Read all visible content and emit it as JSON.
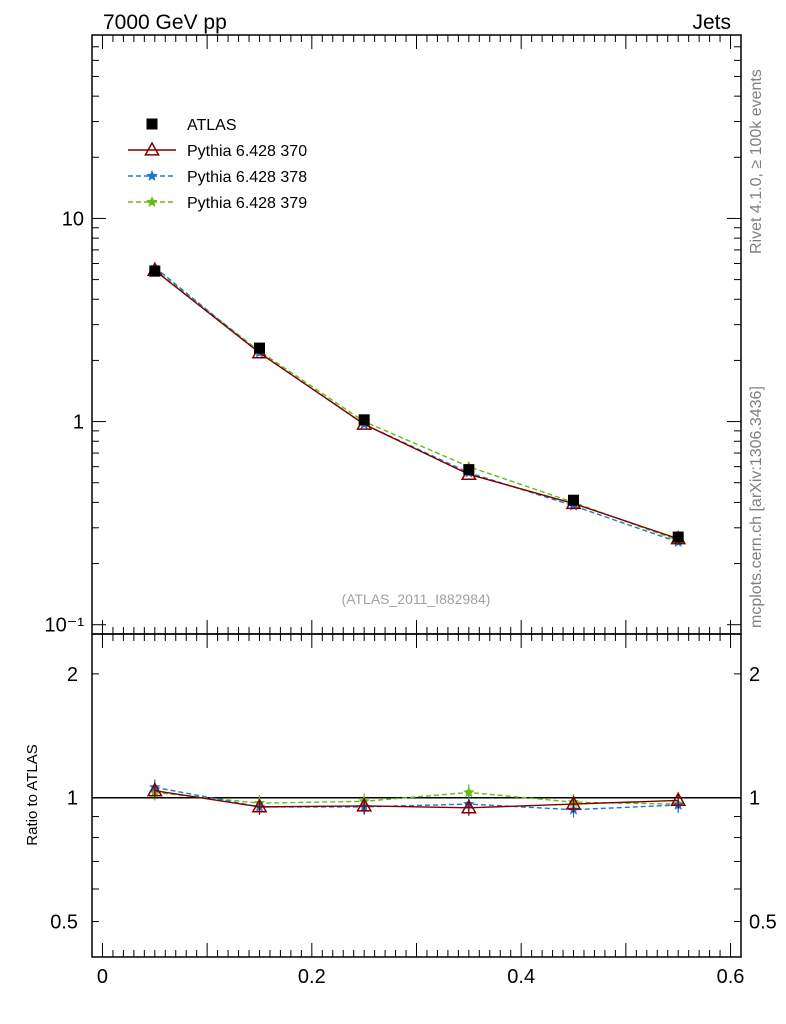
{
  "header": {
    "left_title": "7000 GeV pp",
    "right_title": "Jets"
  },
  "side_text": {
    "rivet": "Rivet 4.1.0, ≥ 100k events",
    "source": "mcplots.cern.ch [arXiv:1306.3436]"
  },
  "analysis_label": "(ATLAS_2011_I882984)",
  "colors": {
    "atlas": "#000000",
    "py370": "#7f0000",
    "py378": "#1f77d4",
    "py379": "#66bb11"
  },
  "chart_data": [
    {
      "type": "line",
      "panel": "main",
      "xlim": [
        -0.01,
        0.61
      ],
      "ylim": [
        0.09,
        80
      ],
      "ylog": true,
      "ytick_labels": [
        "10⁻¹",
        "1",
        "10"
      ],
      "ytick_values": [
        0.1,
        1,
        10
      ],
      "legend_position": "top-left",
      "x": [
        0.05,
        0.15,
        0.25,
        0.35,
        0.45,
        0.55
      ],
      "series": [
        {
          "name": "ATLAS",
          "marker": "square",
          "style": "points",
          "values": [
            5.5,
            2.3,
            1.02,
            0.58,
            0.41,
            0.27
          ]
        },
        {
          "name": "Pythia 6.428 370",
          "marker": "triangle-open",
          "style": "solid",
          "values": [
            5.55,
            2.18,
            0.97,
            0.55,
            0.395,
            0.265
          ]
        },
        {
          "name": "Pythia 6.428 378",
          "marker": "star",
          "style": "dashed",
          "values": [
            5.75,
            2.18,
            0.97,
            0.56,
            0.385,
            0.255
          ]
        },
        {
          "name": "Pythia 6.428 379",
          "marker": "star",
          "style": "dashed",
          "values": [
            5.6,
            2.22,
            1.0,
            0.6,
            0.4,
            0.26
          ]
        }
      ]
    },
    {
      "type": "line",
      "panel": "ratio",
      "ylabel": "Ratio to ATLAS",
      "xlim": [
        -0.01,
        0.61
      ],
      "ylim": [
        0.41,
        2.5
      ],
      "ylog": true,
      "ytick_labels": [
        "0.5",
        "1",
        "2"
      ],
      "ytick_values": [
        0.5,
        1,
        2
      ],
      "xtick_labels": [
        "0",
        "0.2",
        "0.4",
        "0.6"
      ],
      "xtick_values": [
        0,
        0.2,
        0.4,
        0.6
      ],
      "x": [
        0.05,
        0.15,
        0.25,
        0.35,
        0.45,
        0.55
      ],
      "series": [
        {
          "name": "Pythia 6.428 370",
          "marker": "triangle-open",
          "style": "solid",
          "values": [
            1.04,
            0.95,
            0.955,
            0.945,
            0.965,
            0.985
          ]
        },
        {
          "name": "Pythia 6.428 378",
          "marker": "star",
          "style": "dashed",
          "values": [
            1.06,
            0.95,
            0.95,
            0.965,
            0.935,
            0.96
          ]
        },
        {
          "name": "Pythia 6.428 379",
          "marker": "star",
          "style": "dashed",
          "values": [
            1.03,
            0.97,
            0.98,
            1.03,
            0.975,
            0.965
          ]
        }
      ]
    }
  ]
}
